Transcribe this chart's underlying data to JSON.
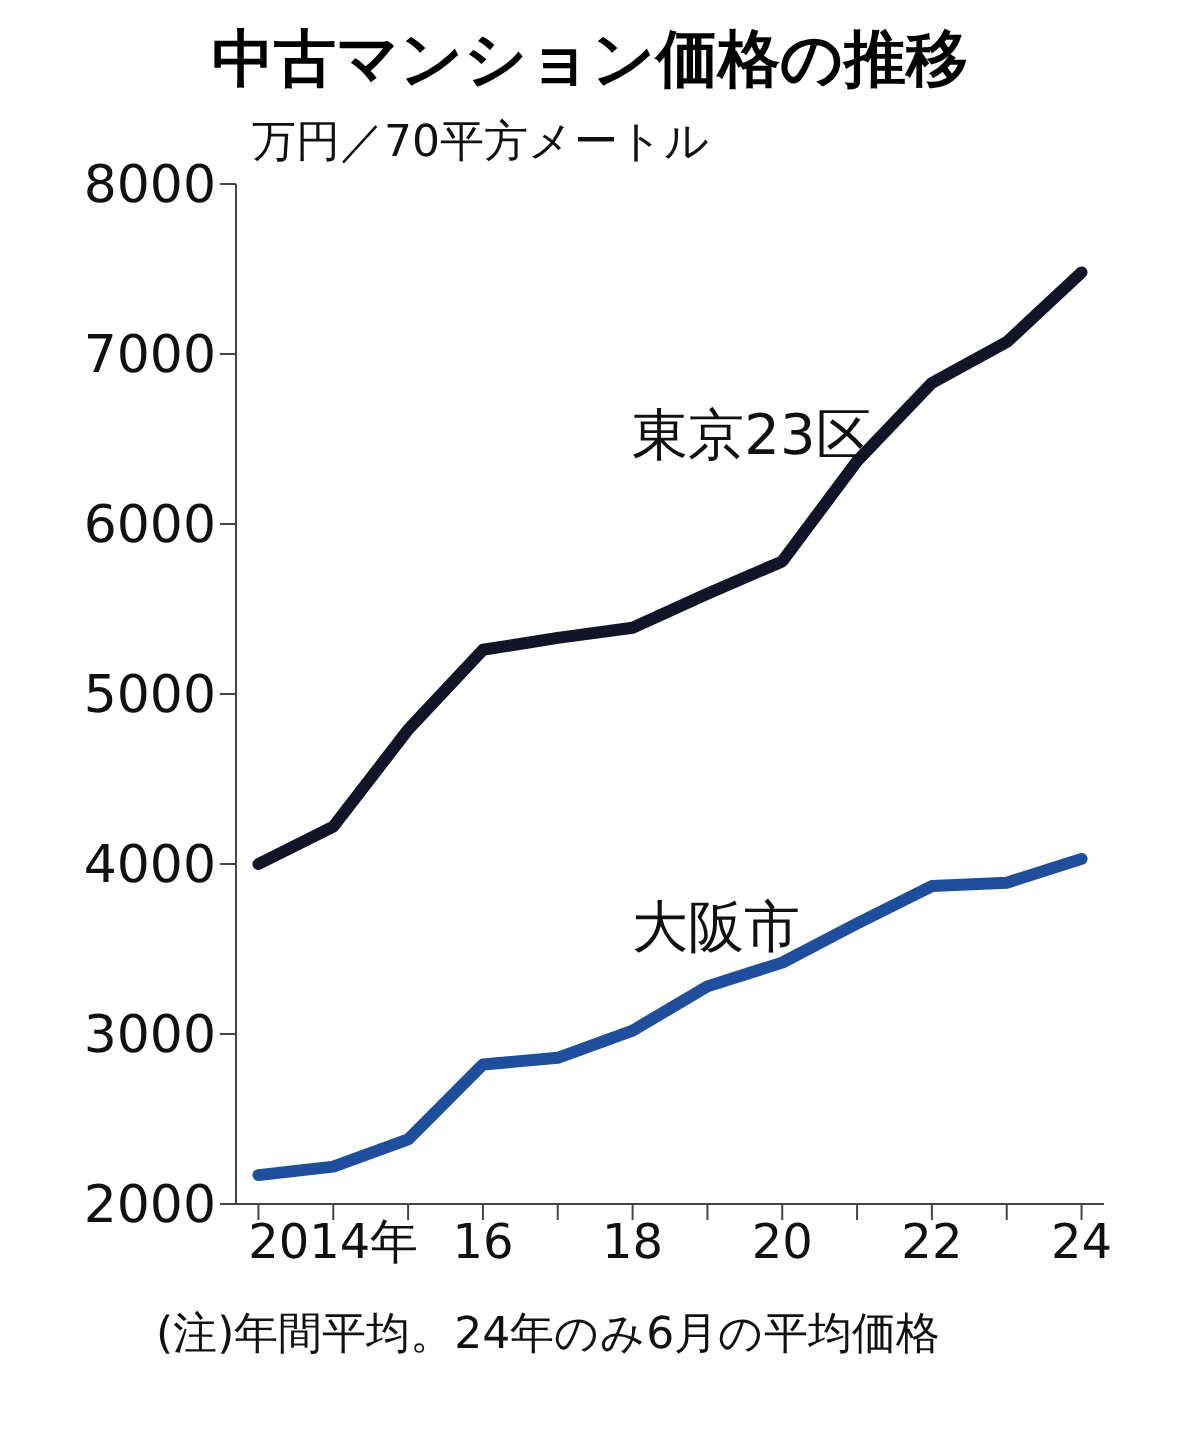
{
  "chart_data": {
    "type": "line",
    "title": "中古マンション価格の推移",
    "ylabel": "万円／70平方メートル",
    "categories": [
      null,
      "2014年",
      null,
      "16",
      null,
      "18",
      null,
      "20",
      null,
      "22",
      null,
      "24"
    ],
    "series": [
      {
        "name": "東京23区",
        "color": "#141428",
        "values": [
          4000,
          4220,
          4790,
          5260,
          5330,
          5390,
          5590,
          5780,
          6370,
          6830,
          7070,
          7480
        ]
      },
      {
        "name": "大阪市",
        "color": "#1f4e9c",
        "values": [
          2170,
          2220,
          2380,
          2820,
          2860,
          3020,
          3280,
          3420,
          3650,
          3870,
          3890,
          4030
        ]
      }
    ],
    "ylim": [
      2000,
      8000
    ],
    "yticks": [
      2000,
      3000,
      4000,
      5000,
      6000,
      7000,
      8000
    ],
    "grid": false,
    "legend": false,
    "marker": "none",
    "line_style": "solid",
    "annotations": [
      "(注)年間平均。24年のみ6月の平均価格"
    ]
  }
}
